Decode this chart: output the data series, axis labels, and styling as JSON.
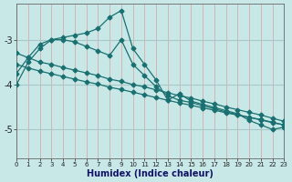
{
  "xlabel": "Humidex (Indice chaleur)",
  "bg_color": "#c8e8e8",
  "line_color": "#1a7070",
  "vgrid_color": "#d8a0a0",
  "hgrid_color": "#a8c8c8",
  "xlim": [
    0,
    23
  ],
  "ylim": [
    -5.65,
    -2.2
  ],
  "yticks": [
    -5,
    -4,
    -3
  ],
  "xticks": [
    0,
    1,
    2,
    3,
    4,
    5,
    6,
    7,
    8,
    9,
    10,
    11,
    12,
    13,
    14,
    15,
    16,
    17,
    18,
    19,
    20,
    21,
    22,
    23
  ],
  "series": [
    {
      "x": [
        0,
        1,
        2,
        3,
        4,
        5,
        6,
        7,
        8,
        9,
        10,
        11,
        12,
        13,
        14,
        15,
        16,
        17,
        18,
        19,
        20,
        21,
        22,
        23
      ],
      "y": [
        -3.3,
        -3.4,
        -3.5,
        -3.55,
        -3.62,
        -3.68,
        -3.74,
        -3.8,
        -3.88,
        -3.93,
        -4.0,
        -4.05,
        -4.12,
        -4.18,
        -4.25,
        -4.3,
        -4.37,
        -4.43,
        -4.5,
        -4.56,
        -4.62,
        -4.68,
        -4.75,
        -4.82
      ]
    },
    {
      "x": [
        0,
        1,
        2,
        3,
        4,
        5,
        6,
        7,
        8,
        9,
        10,
        11,
        12,
        13,
        14,
        15,
        16,
        17,
        18,
        19,
        20,
        21,
        22,
        23
      ],
      "y": [
        -3.55,
        -3.63,
        -3.7,
        -3.76,
        -3.82,
        -3.88,
        -3.94,
        -3.99,
        -4.06,
        -4.11,
        -4.17,
        -4.23,
        -4.29,
        -4.35,
        -4.41,
        -4.46,
        -4.52,
        -4.57,
        -4.63,
        -4.68,
        -4.73,
        -4.78,
        -4.84,
        -4.9
      ]
    },
    {
      "x": [
        0,
        1,
        2,
        3,
        4,
        5,
        6,
        7,
        8,
        9,
        10,
        11,
        12,
        13,
        14,
        15,
        16,
        17,
        18,
        19,
        20,
        21,
        22,
        23
      ],
      "y": [
        -4.0,
        -3.5,
        -3.2,
        -3.0,
        -3.0,
        -3.05,
        -3.15,
        -3.25,
        -3.35,
        -3.0,
        -3.55,
        -3.8,
        -4.05,
        -4.25,
        -4.35,
        -4.4,
        -4.47,
        -4.54,
        -4.61,
        -4.67,
        -4.73,
        -4.79,
        -4.85,
        -4.9
      ]
    },
    {
      "x": [
        0,
        1,
        2,
        3,
        4,
        5,
        6,
        7,
        8,
        9,
        10,
        11,
        12,
        13,
        14,
        15,
        16,
        17,
        18,
        19,
        20,
        21,
        22,
        23
      ],
      "y": [
        -3.75,
        -3.4,
        -3.1,
        -3.0,
        -2.95,
        -2.9,
        -2.85,
        -2.75,
        -2.5,
        -2.35,
        -3.2,
        -3.55,
        -3.9,
        -4.35,
        -4.2,
        -4.37,
        -4.44,
        -4.51,
        -4.58,
        -4.65,
        -4.8,
        -4.9,
        -5.0,
        -4.95
      ]
    }
  ]
}
